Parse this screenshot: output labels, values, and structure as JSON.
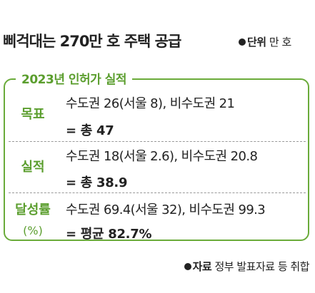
{
  "header": {
    "title": "삐걱대는 270만 호 주택 공급",
    "unit_label": "단위",
    "unit": "만 호"
  },
  "table": {
    "label": "2023년 인허가 실적",
    "rows": [
      {
        "label": "목표",
        "line1": "수도권 26(서울 8), 비수도권 21",
        "line2": "= 총 47"
      },
      {
        "label": "실적",
        "line1": "수도권 18(서울 2.6), 비수도권 20.8",
        "line2": "= 총 38.9"
      },
      {
        "label": "달성률",
        "sublabel": "(%)",
        "line1": "수도권 69.4(서울 32), 비수도권 99.3",
        "line2": "= 평균 82.7%"
      }
    ]
  },
  "footer": {
    "source_label": "자료",
    "source": "정부 발표자료 등 취합"
  }
}
